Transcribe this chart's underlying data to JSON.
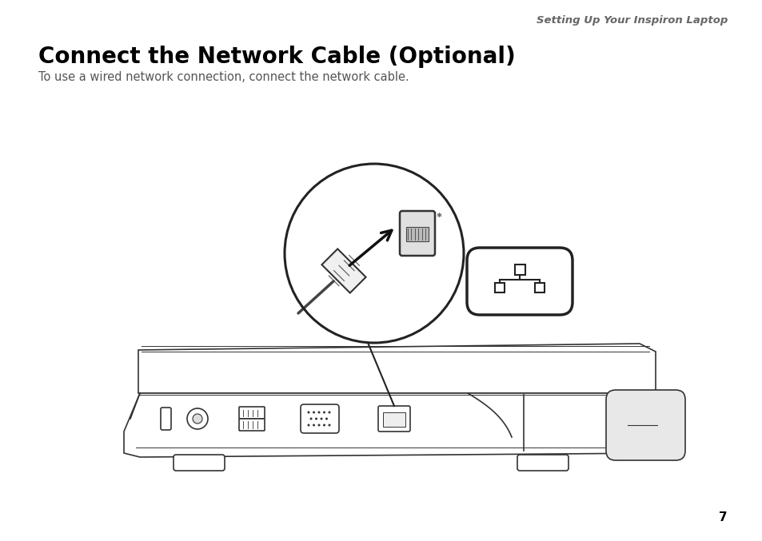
{
  "bg_color": "#ffffff",
  "header_text": "Setting Up Your Inspiron Laptop",
  "header_color": "#666666",
  "header_fontsize": 9.5,
  "title_text": "Connect the Network Cable (Optional)",
  "title_fontsize": 20,
  "title_color": "#000000",
  "body_text": "To use a wired network connection, connect the network cable.",
  "body_fontsize": 10.5,
  "body_color": "#555555",
  "page_number": "7",
  "page_fontsize": 11,
  "line_color": "#333333",
  "line_width": 1.2
}
